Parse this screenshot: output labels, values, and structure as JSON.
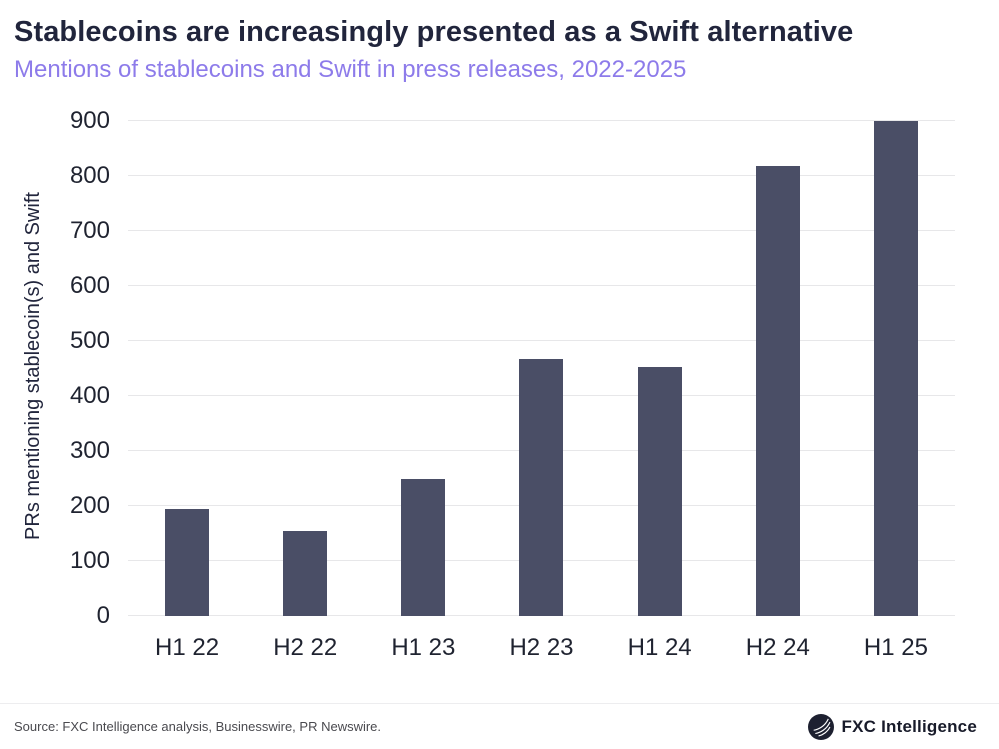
{
  "header": {
    "title": "Stablecoins are increasingly presented as a Swift alternative",
    "subtitle": "Mentions of stablecoins and Swift in press releases, 2022-2025"
  },
  "chart_data": {
    "type": "bar",
    "title": "Stablecoins are increasingly presented as a Swift alternative",
    "subtitle": "Mentions of stablecoins and Swift in press releases, 2022-2025",
    "categories": [
      "H1 22",
      "H2 22",
      "H1 23",
      "H2 23",
      "H1 24",
      "H2 24",
      "H1 25"
    ],
    "values": [
      195,
      155,
      250,
      468,
      452,
      818,
      900
    ],
    "xlabel": "",
    "ylabel": "PRs mentioning stablecoin(s) and Swift",
    "ylim": [
      0,
      900
    ],
    "ytick_step": 100,
    "grid": true,
    "legend": "none",
    "bar_color": "#4a4e66"
  },
  "footer": {
    "source": "Source: FXC Intelligence analysis, Businesswire, PR Newswire.",
    "logo_text": "FXC Intelligence"
  }
}
